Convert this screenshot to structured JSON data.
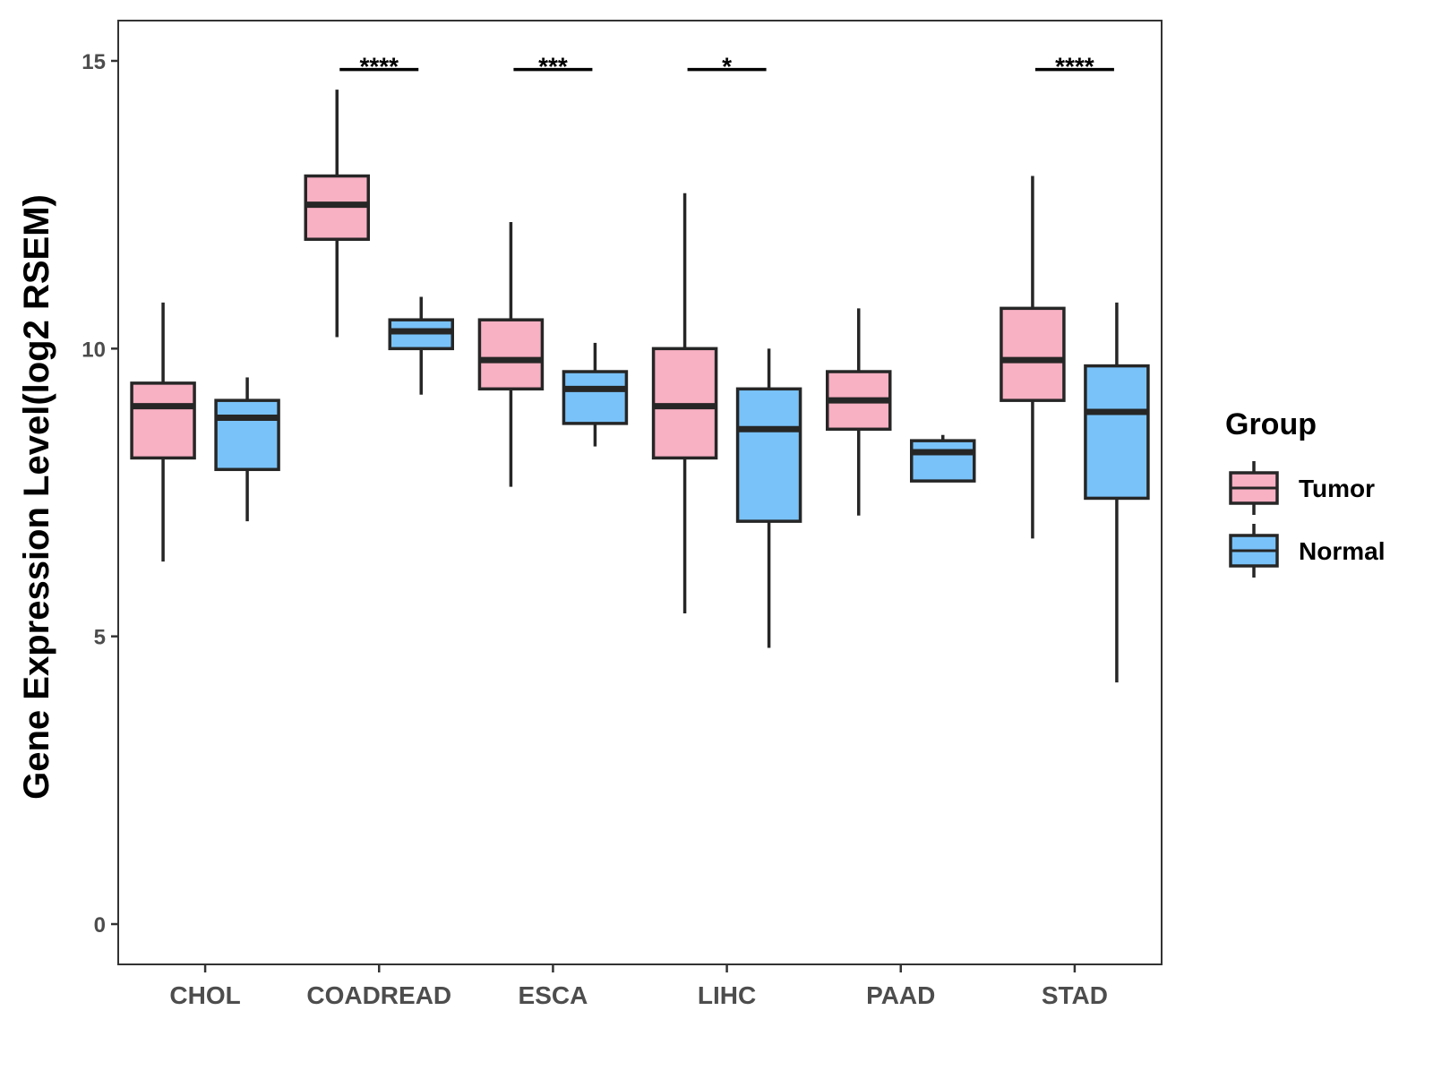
{
  "chart_data": {
    "type": "boxplot",
    "title": "",
    "xlabel": "",
    "ylabel": "Gene Expression Level(log2 RSEM)",
    "ylim": [
      -0.7,
      15.7
    ],
    "yticks": [
      0,
      5,
      10,
      15
    ],
    "grid": false,
    "categories": [
      "CHOL",
      "COADREAD",
      "ESCA",
      "LIHC",
      "PAAD",
      "STAD"
    ],
    "legend": {
      "title": "Group",
      "position": "right",
      "entries": [
        {
          "name": "Tumor",
          "color": "#f8b0c3"
        },
        {
          "name": "Normal",
          "color": "#79c2f9"
        }
      ]
    },
    "series": [
      {
        "name": "Tumor",
        "color": "#f8b0c3",
        "boxes": [
          {
            "whisker_low": 6.3,
            "q1": 8.1,
            "median": 9.0,
            "q3": 9.4,
            "whisker_high": 10.8
          },
          {
            "whisker_low": 10.2,
            "q1": 11.9,
            "median": 12.5,
            "q3": 13.0,
            "whisker_high": 14.5
          },
          {
            "whisker_low": 7.6,
            "q1": 9.3,
            "median": 9.8,
            "q3": 10.5,
            "whisker_high": 12.2
          },
          {
            "whisker_low": 5.4,
            "q1": 8.1,
            "median": 9.0,
            "q3": 10.0,
            "whisker_high": 12.7
          },
          {
            "whisker_low": 7.1,
            "q1": 8.6,
            "median": 9.1,
            "q3": 9.6,
            "whisker_high": 10.7
          },
          {
            "whisker_low": 6.7,
            "q1": 9.1,
            "median": 9.8,
            "q3": 10.7,
            "whisker_high": 13.0
          }
        ]
      },
      {
        "name": "Normal",
        "color": "#79c2f9",
        "boxes": [
          {
            "whisker_low": 7.0,
            "q1": 7.9,
            "median": 8.8,
            "q3": 9.1,
            "whisker_high": 9.5
          },
          {
            "whisker_low": 9.2,
            "q1": 10.0,
            "median": 10.3,
            "q3": 10.5,
            "whisker_high": 10.9
          },
          {
            "whisker_low": 8.3,
            "q1": 8.7,
            "median": 9.3,
            "q3": 9.6,
            "whisker_high": 10.1
          },
          {
            "whisker_low": 4.8,
            "q1": 7.0,
            "median": 8.6,
            "q3": 9.3,
            "whisker_high": 10.0
          },
          {
            "whisker_low": 7.7,
            "q1": 7.7,
            "median": 8.2,
            "q3": 8.4,
            "whisker_high": 8.5
          },
          {
            "whisker_low": 4.2,
            "q1": 7.4,
            "median": 8.9,
            "q3": 9.7,
            "whisker_high": 10.8
          }
        ]
      }
    ],
    "significance": [
      {
        "category": "COADREAD",
        "label": "****",
        "y": 14.85
      },
      {
        "category": "ESCA",
        "label": "***",
        "y": 14.85
      },
      {
        "category": "LIHC",
        "label": "*",
        "y": 14.85
      },
      {
        "category": "STAD",
        "label": "****",
        "y": 14.85
      }
    ]
  }
}
